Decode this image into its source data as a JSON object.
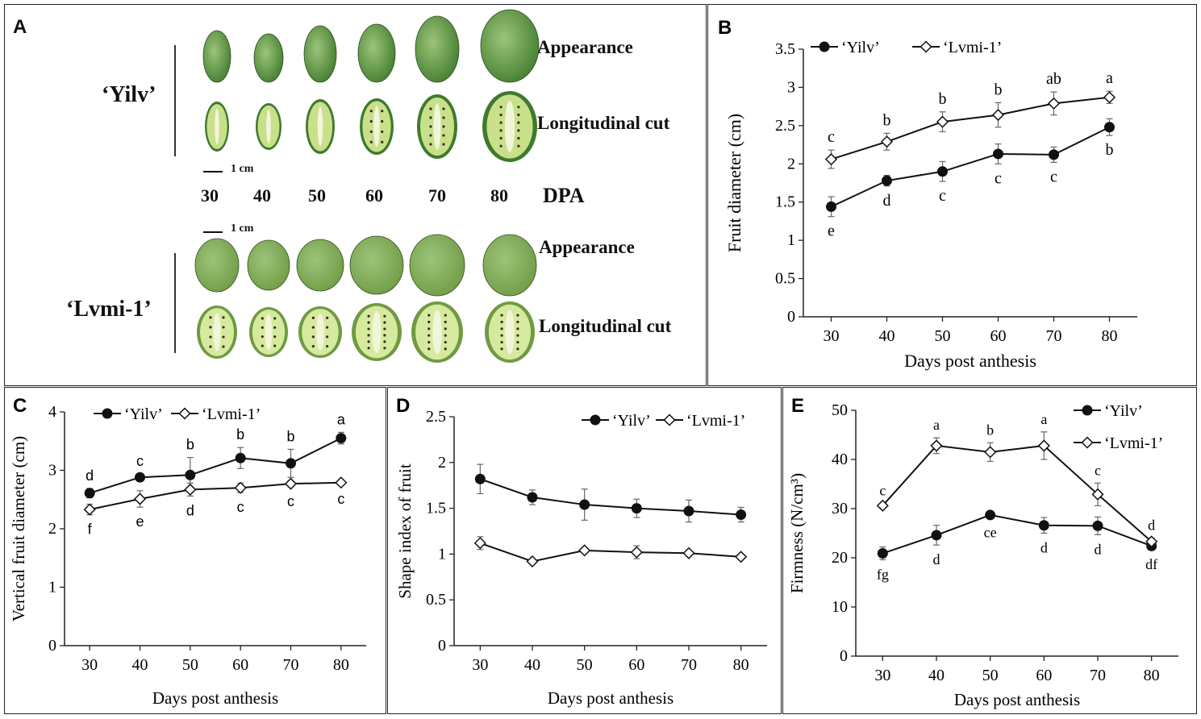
{
  "panel_a": {
    "label": "A",
    "varieties": [
      "‘Yilv’",
      "‘Lvmi-1’"
    ],
    "row_labels": [
      "Appearance",
      "Longitudinal cut",
      "Appearance",
      "Longitudinal cut"
    ],
    "dpa_values": [
      "30",
      "40",
      "50",
      "60",
      "70",
      "80"
    ],
    "dpa_label": "DPA",
    "scale_label": "1 cm",
    "colors": {
      "yilv_skin": "#3f7a2c",
      "yilv_flesh": "#c9e08a",
      "lvmi_skin": "#6f9a42",
      "lvmi_flesh": "#d6ea9f",
      "seed": "#3a2a22"
    }
  },
  "chart_data": [
    {
      "id": "B",
      "label": "B",
      "type": "line",
      "xlabel": "Days post anthesis",
      "ylabel": "Fruit diameter (cm)",
      "x": [
        30,
        40,
        50,
        60,
        70,
        80
      ],
      "xticks": [
        "30",
        "40",
        "50",
        "60",
        "70",
        "80"
      ],
      "ylim": [
        0,
        3.5
      ],
      "yticks": [
        "0",
        "0.5",
        "1",
        "1.5",
        "2",
        "2.5",
        "3",
        "3.5"
      ],
      "legend": "top",
      "series": [
        {
          "name": "‘Yilv’",
          "marker": "circle",
          "values": [
            1.44,
            1.78,
            1.9,
            2.13,
            2.12,
            2.48
          ],
          "errors": [
            0.13,
            0.07,
            0.13,
            0.13,
            0.1,
            0.11
          ],
          "letters": [
            "e",
            "d",
            "c",
            "c",
            "c",
            "b"
          ],
          "letter_pos": "below"
        },
        {
          "name": "‘Lvmi-1’",
          "marker": "diamond",
          "values": [
            2.06,
            2.29,
            2.55,
            2.64,
            2.79,
            2.87
          ],
          "errors": [
            0.12,
            0.11,
            0.13,
            0.16,
            0.15,
            0.08
          ],
          "letters": [
            "c",
            "b",
            "b",
            "b",
            "ab",
            "a"
          ],
          "letter_pos": "above"
        }
      ]
    },
    {
      "id": "C",
      "label": "C",
      "type": "line",
      "xlabel": "Days post anthesis",
      "ylabel": "Vertical fruit diameter (cm)",
      "x": [
        30,
        40,
        50,
        60,
        70,
        80
      ],
      "xticks": [
        "30",
        "40",
        "50",
        "60",
        "70",
        "80"
      ],
      "ylim": [
        0,
        4
      ],
      "yticks": [
        "0",
        "1",
        "2",
        "3",
        "4"
      ],
      "legend": "top",
      "series": [
        {
          "name": "‘Yilv’",
          "marker": "circle",
          "values": [
            2.61,
            2.88,
            2.92,
            3.21,
            3.12,
            3.55
          ],
          "errors": [
            0.08,
            0.06,
            0.3,
            0.18,
            0.24,
            0.1
          ],
          "letters": [
            "d",
            "c",
            "b",
            "b",
            "b",
            "a"
          ],
          "letter_pos": "above"
        },
        {
          "name": "‘Lvmi-1’",
          "marker": "diamond",
          "values": [
            2.33,
            2.51,
            2.67,
            2.7,
            2.77,
            2.79
          ],
          "errors": [
            0.09,
            0.14,
            0.11,
            0.08,
            0.05,
            0.03
          ],
          "letters": [
            "f",
            "e",
            "d",
            "c",
            "c",
            "c"
          ],
          "letter_pos": "below"
        }
      ]
    },
    {
      "id": "D",
      "label": "D",
      "type": "line",
      "xlabel": "Days post anthesis",
      "ylabel": "Shape index of fruit",
      "x": [
        30,
        40,
        50,
        60,
        70,
        80
      ],
      "xticks": [
        "30",
        "40",
        "50",
        "60",
        "70",
        "80"
      ],
      "ylim": [
        0,
        2.5
      ],
      "yticks": [
        "0",
        "0.5",
        "1",
        "1.5",
        "2",
        "2.5"
      ],
      "legend": "top",
      "series": [
        {
          "name": "‘Yilv’",
          "marker": "circle",
          "values": [
            1.82,
            1.62,
            1.54,
            1.5,
            1.47,
            1.43
          ],
          "errors": [
            0.16,
            0.08,
            0.17,
            0.1,
            0.12,
            0.08
          ],
          "letters": [],
          "letter_pos": "above"
        },
        {
          "name": "‘Lvmi-1’",
          "marker": "diamond",
          "values": [
            1.12,
            0.92,
            1.04,
            1.02,
            1.01,
            0.97
          ],
          "errors": [
            0.07,
            0.02,
            0.03,
            0.07,
            0.03,
            0.02
          ],
          "letters": [],
          "letter_pos": "below"
        }
      ]
    },
    {
      "id": "E",
      "label": "E",
      "type": "line",
      "xlabel": "Days post anthesis",
      "ylabel": "Firmness (N/cm³)",
      "x": [
        30,
        40,
        50,
        60,
        70,
        80
      ],
      "xticks": [
        "30",
        "40",
        "50",
        "60",
        "70",
        "80"
      ],
      "ylim": [
        0,
        50
      ],
      "yticks": [
        "0",
        "10",
        "20",
        "30",
        "40",
        "50"
      ],
      "legend": "top-right",
      "series": [
        {
          "name": "‘Yilv’",
          "marker": "circle",
          "values": [
            20.9,
            24.6,
            28.7,
            26.6,
            26.5,
            22.4
          ],
          "errors": [
            1.3,
            2.0,
            0.6,
            1.6,
            1.8,
            0.8
          ],
          "letters": [
            "fg",
            "d",
            "ce",
            "d",
            "d",
            "df"
          ],
          "letter_pos": "below"
        },
        {
          "name": "‘Lvmi-1’",
          "marker": "diamond",
          "values": [
            30.6,
            42.8,
            41.5,
            42.8,
            32.9,
            23.3
          ],
          "errors": [
            0.5,
            1.6,
            1.9,
            2.8,
            2.3,
            0.7
          ],
          "letters": [
            "c",
            "a",
            "b",
            "a",
            "c",
            "d"
          ],
          "letter_pos": "above"
        }
      ]
    }
  ]
}
